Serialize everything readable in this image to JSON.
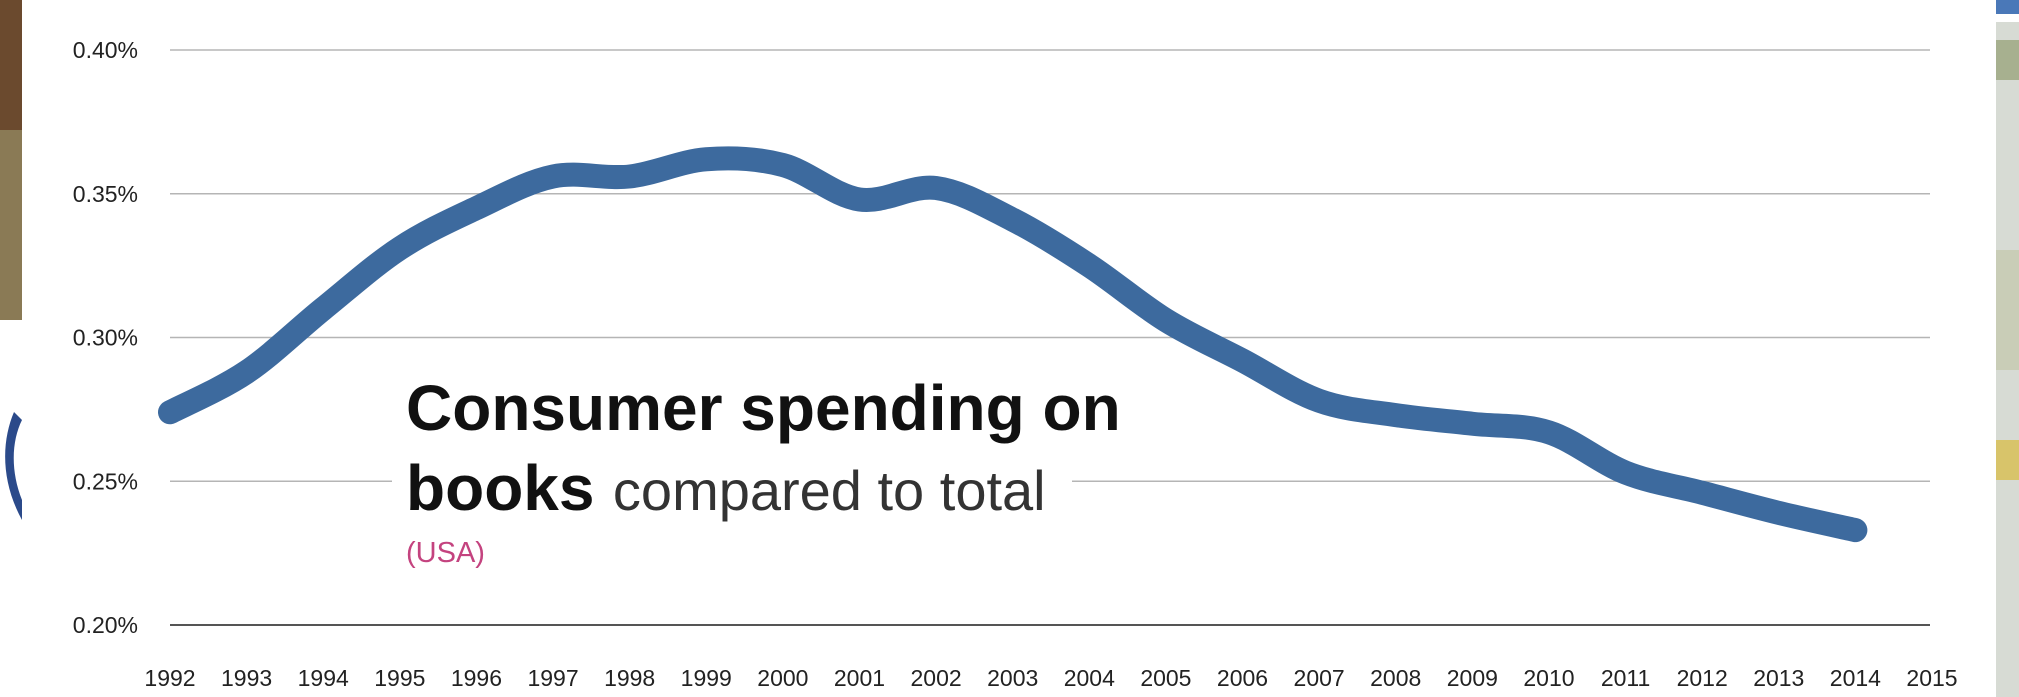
{
  "chart_data": {
    "type": "line",
    "title_bold_line1": "Consumer spending on",
    "title_bold_line2": "books",
    "title_rest_line2": "compared to total",
    "subtitle": "(USA)",
    "xlabel": "",
    "ylabel": "",
    "y_ticks": [
      "0.20%",
      "0.25%",
      "0.30%",
      "0.35%",
      "0.40%"
    ],
    "y_tick_values": [
      0.2,
      0.25,
      0.3,
      0.35,
      0.4
    ],
    "ylim": [
      0.2,
      0.4
    ],
    "x_ticks": [
      "1992",
      "1993",
      "1994",
      "1995",
      "1996",
      "1997",
      "1998",
      "1999",
      "2000",
      "2001",
      "2002",
      "2003",
      "2004",
      "2005",
      "2006",
      "2007",
      "2008",
      "2009",
      "2010",
      "2011",
      "2012",
      "2013",
      "2014",
      "2015"
    ],
    "xlim": [
      1992,
      2015
    ],
    "grid": "horizontal",
    "series": [
      {
        "x": [
          1992,
          1993,
          1994,
          1995,
          1996,
          1997,
          1998,
          1999,
          2000,
          2001,
          2002,
          2003,
          2004,
          2005,
          2006,
          2007,
          2008,
          2009,
          2010,
          2011,
          2012,
          2013,
          2014
        ],
        "values": [
          0.274,
          0.288,
          0.31,
          0.331,
          0.345,
          0.356,
          0.356,
          0.362,
          0.36,
          0.348,
          0.352,
          0.341,
          0.325,
          0.306,
          0.292,
          0.278,
          0.273,
          0.27,
          0.267,
          0.253,
          0.246,
          0.239,
          0.233
        ]
      }
    ]
  },
  "colors": {
    "line": "#3d6a9e",
    "grid": "#b5b5b5",
    "axis": "#555555",
    "subtitle": "#c4437f"
  }
}
